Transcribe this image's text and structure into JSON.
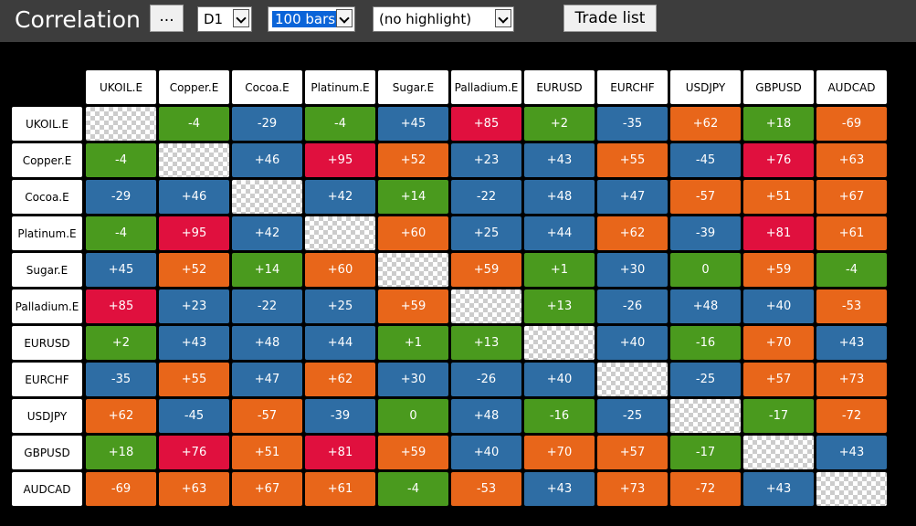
{
  "header": {
    "title": "Correlation"
  },
  "toolbar": {
    "menu": "...",
    "timeframe": "D1",
    "bars": "100 bars",
    "highlight": "(no highlight)",
    "trade_list": "Trade list"
  },
  "table": {
    "columns": [
      "UKOIL.E",
      "Copper.E",
      "Cocoa.E",
      "Platinum.E",
      "Sugar.E",
      "Palladium.E",
      "EURUSD",
      "EURCHF",
      "USDJPY",
      "GBPUSD",
      "AUDCAD"
    ],
    "row_labels": [
      "UKOIL.E",
      "Copper.E",
      "Cocoa.E",
      "Platinum.E",
      "Sugar.E",
      "Palladium.E",
      "EURUSD",
      "EURCHF",
      "USDJPY",
      "GBPUSD",
      "AUDCAD"
    ],
    "rows": [
      [
        null,
        "-4",
        "-29",
        "-4",
        "+45",
        "+85",
        "+2",
        "-35",
        "+62",
        "+18",
        "-69"
      ],
      [
        "-4",
        null,
        "+46",
        "+95",
        "+52",
        "+23",
        "+43",
        "+55",
        "-45",
        "+76",
        "+63"
      ],
      [
        "-29",
        "+46",
        null,
        "+42",
        "+14",
        "-22",
        "+48",
        "+47",
        "-57",
        "+51",
        "+67"
      ],
      [
        "-4",
        "+95",
        "+42",
        null,
        "+60",
        "+25",
        "+44",
        "+62",
        "-39",
        "+81",
        "+61"
      ],
      [
        "+45",
        "+52",
        "+14",
        "+60",
        null,
        "+59",
        "+1",
        "+30",
        "0",
        "+59",
        "-4"
      ],
      [
        "+85",
        "+23",
        "-22",
        "+25",
        "+59",
        null,
        "+13",
        "-26",
        "+48",
        "+40",
        "-53"
      ],
      [
        "+2",
        "+43",
        "+48",
        "+44",
        "+1",
        "+13",
        null,
        "+40",
        "-16",
        "+70",
        "+43"
      ],
      [
        "-35",
        "+55",
        "+47",
        "+62",
        "+30",
        "-26",
        "+40",
        null,
        "-25",
        "+57",
        "+73"
      ],
      [
        "+62",
        "-45",
        "-57",
        "-39",
        "0",
        "+48",
        "-16",
        "-25",
        null,
        "-17",
        "-72"
      ],
      [
        "+18",
        "+76",
        "+51",
        "+81",
        "+59",
        "+40",
        "+70",
        "+57",
        "-17",
        null,
        "+43"
      ],
      [
        "-69",
        "+63",
        "+67",
        "+61",
        "-4",
        "-53",
        "+43",
        "+73",
        "-72",
        "+43",
        null
      ]
    ]
  }
}
